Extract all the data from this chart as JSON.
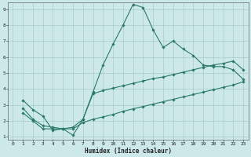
{
  "xlabel": "Humidex (Indice chaleur)",
  "bg_color": "#cce8e8",
  "grid_color": "#aacccc",
  "line_color": "#2a7a6a",
  "xlim": [
    -0.5,
    23.5
  ],
  "ylim": [
    0.8,
    9.4
  ],
  "xticks": [
    0,
    1,
    2,
    3,
    4,
    5,
    6,
    7,
    8,
    9,
    10,
    11,
    12,
    13,
    14,
    15,
    16,
    17,
    18,
    19,
    20,
    21,
    22,
    23
  ],
  "yticks": [
    1,
    2,
    3,
    4,
    5,
    6,
    7,
    8,
    9
  ],
  "line1_x": [
    1,
    2,
    3,
    4,
    5,
    6,
    7,
    8,
    9,
    10,
    11,
    12,
    13,
    14,
    15,
    16,
    17,
    18,
    19,
    20,
    21,
    22,
    23
  ],
  "line1_y": [
    3.3,
    2.7,
    2.3,
    1.4,
    1.5,
    1.1,
    2.1,
    3.8,
    5.5,
    6.8,
    8.0,
    9.3,
    9.1,
    7.7,
    6.6,
    7.0,
    6.5,
    6.1,
    5.5,
    5.4,
    5.4,
    5.2,
    4.6
  ],
  "line2_x": [
    1,
    2,
    3,
    4,
    5,
    6,
    7,
    8,
    9,
    10,
    11,
    12,
    13,
    14,
    15,
    16,
    17,
    18,
    19,
    20,
    21,
    22,
    23
  ],
  "line2_y": [
    2.8,
    2.1,
    1.7,
    1.6,
    1.5,
    1.6,
    2.1,
    3.7,
    3.9,
    4.05,
    4.2,
    4.35,
    4.5,
    4.65,
    4.75,
    4.9,
    5.05,
    5.2,
    5.35,
    5.5,
    5.6,
    5.75,
    5.2
  ],
  "line3_x": [
    1,
    2,
    3,
    4,
    5,
    6,
    7,
    8,
    9,
    10,
    11,
    12,
    13,
    14,
    15,
    16,
    17,
    18,
    19,
    20,
    21,
    22,
    23
  ],
  "line3_y": [
    2.5,
    2.0,
    1.5,
    1.5,
    1.5,
    1.5,
    1.9,
    2.1,
    2.25,
    2.4,
    2.6,
    2.75,
    2.9,
    3.05,
    3.2,
    3.35,
    3.5,
    3.65,
    3.8,
    3.95,
    4.1,
    4.25,
    4.45
  ]
}
